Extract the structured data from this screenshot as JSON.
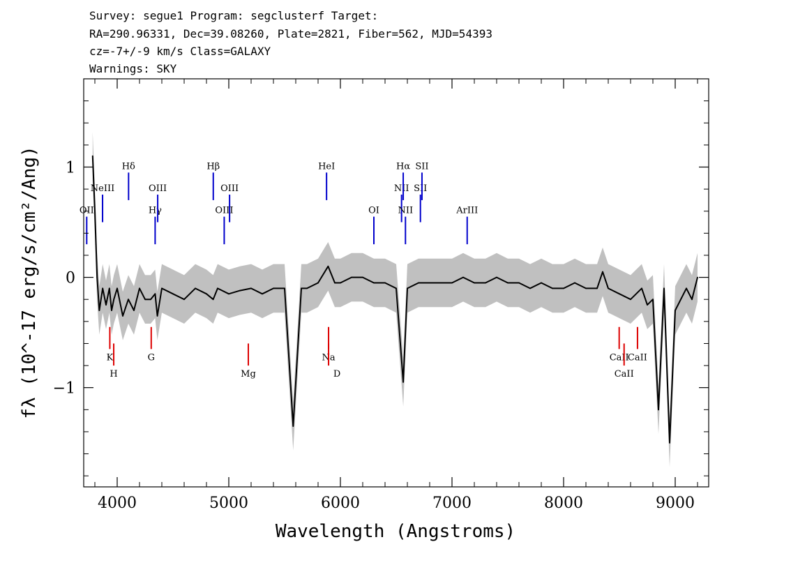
{
  "header": {
    "line1": "Survey: segue1 Program: segclusterf Target:",
    "line2": "RA=290.96331, Dec=39.08260, Plate=2821, Fiber=562, MJD=54393",
    "line3": "cz=-7+/-9 km/s Class=GALAXY",
    "line4": "Warnings: SKY"
  },
  "chart_data": {
    "type": "line",
    "xlabel": "Wavelength (Angstroms)",
    "ylabel": "fλ (10^-17 erg/s/cm²/Ang)",
    "xlim": [
      3700,
      9300
    ],
    "ylim": [
      -1.9,
      1.8
    ],
    "xticks": [
      4000,
      5000,
      6000,
      7000,
      8000,
      9000
    ],
    "yticks": [
      -1,
      0,
      1
    ],
    "x_minor_step": 200,
    "y_minor_step": 0.2,
    "series": [
      {
        "color": "#000000",
        "x": [
          3780,
          3800,
          3810,
          3820,
          3840,
          3870,
          3900,
          3930,
          3950,
          3970,
          4000,
          4050,
          4100,
          4150,
          4200,
          4250,
          4300,
          4340,
          4360,
          4400,
          4500,
          4600,
          4700,
          4800,
          4860,
          4900,
          5000,
          5100,
          5200,
          5300,
          5400,
          5500,
          5577,
          5650,
          5700,
          5800,
          5890,
          5950,
          6000,
          6100,
          6200,
          6300,
          6400,
          6500,
          6563,
          6600,
          6700,
          6800,
          6900,
          7000,
          7100,
          7200,
          7300,
          7400,
          7500,
          7600,
          7700,
          7800,
          7900,
          8000,
          8100,
          8200,
          8300,
          8350,
          8400,
          8500,
          8600,
          8700,
          8750,
          8800,
          8850,
          8900,
          8950,
          9000,
          9050,
          9100,
          9150,
          9200
        ],
        "y": [
          1.1,
          0.6,
          0.3,
          0.0,
          -0.3,
          -0.1,
          -0.25,
          -0.1,
          -0.3,
          -0.2,
          -0.1,
          -0.35,
          -0.2,
          -0.3,
          -0.1,
          -0.2,
          -0.2,
          -0.15,
          -0.35,
          -0.1,
          -0.15,
          -0.2,
          -0.1,
          -0.15,
          -0.2,
          -0.1,
          -0.15,
          -0.12,
          -0.1,
          -0.15,
          -0.1,
          -0.1,
          -1.35,
          -0.1,
          -0.1,
          -0.05,
          0.1,
          -0.05,
          -0.05,
          0.0,
          0.0,
          -0.05,
          -0.05,
          -0.1,
          -0.95,
          -0.1,
          -0.05,
          -0.05,
          -0.05,
          -0.05,
          0.0,
          -0.05,
          -0.05,
          0.0,
          -0.05,
          -0.05,
          -0.1,
          -0.05,
          -0.1,
          -0.1,
          -0.05,
          -0.1,
          -0.1,
          0.05,
          -0.1,
          -0.15,
          -0.2,
          -0.1,
          -0.25,
          -0.2,
          -1.2,
          -0.1,
          -1.5,
          -0.3,
          -0.2,
          -0.1,
          -0.2,
          0.0
        ]
      }
    ],
    "emission_lines": [
      {
        "label": "OII",
        "x": 3727
      },
      {
        "label": "NeIII",
        "x": 3869
      },
      {
        "label": "Hδ",
        "x": 4102
      },
      {
        "label": "Hγ",
        "x": 4340
      },
      {
        "label": "OIII",
        "x": 4363
      },
      {
        "label": "Hβ",
        "x": 4861
      },
      {
        "label": "OIII",
        "x": 4959
      },
      {
        "label": "OIII",
        "x": 5007
      },
      {
        "label": "HeI",
        "x": 5876
      },
      {
        "label": "OI",
        "x": 6300
      },
      {
        "label": "NII",
        "x": 6548
      },
      {
        "label": "Hα",
        "x": 6563
      },
      {
        "label": "NII",
        "x": 6583
      },
      {
        "label": "SII",
        "x": 6717
      },
      {
        "label": "SII",
        "x": 6731
      },
      {
        "label": "ArIII",
        "x": 7136
      }
    ],
    "absorption_lines": [
      {
        "label": "K",
        "x": 3934
      },
      {
        "label": "H",
        "x": 3969
      },
      {
        "label": "G",
        "x": 4305
      },
      {
        "label": "Mg",
        "x": 5175
      },
      {
        "label": "Na",
        "x": 5894
      },
      {
        "label": "D",
        "x": 5894
      },
      {
        "label": "CaII",
        "x": 8498
      },
      {
        "label": "CaII",
        "x": 8542
      },
      {
        "label": "CaII",
        "x": 8662
      }
    ],
    "colors": {
      "flux": "#000000",
      "error_band": "#c0c0c0",
      "emission_marker": "#0000cc",
      "absorption_marker": "#dd0000"
    }
  }
}
